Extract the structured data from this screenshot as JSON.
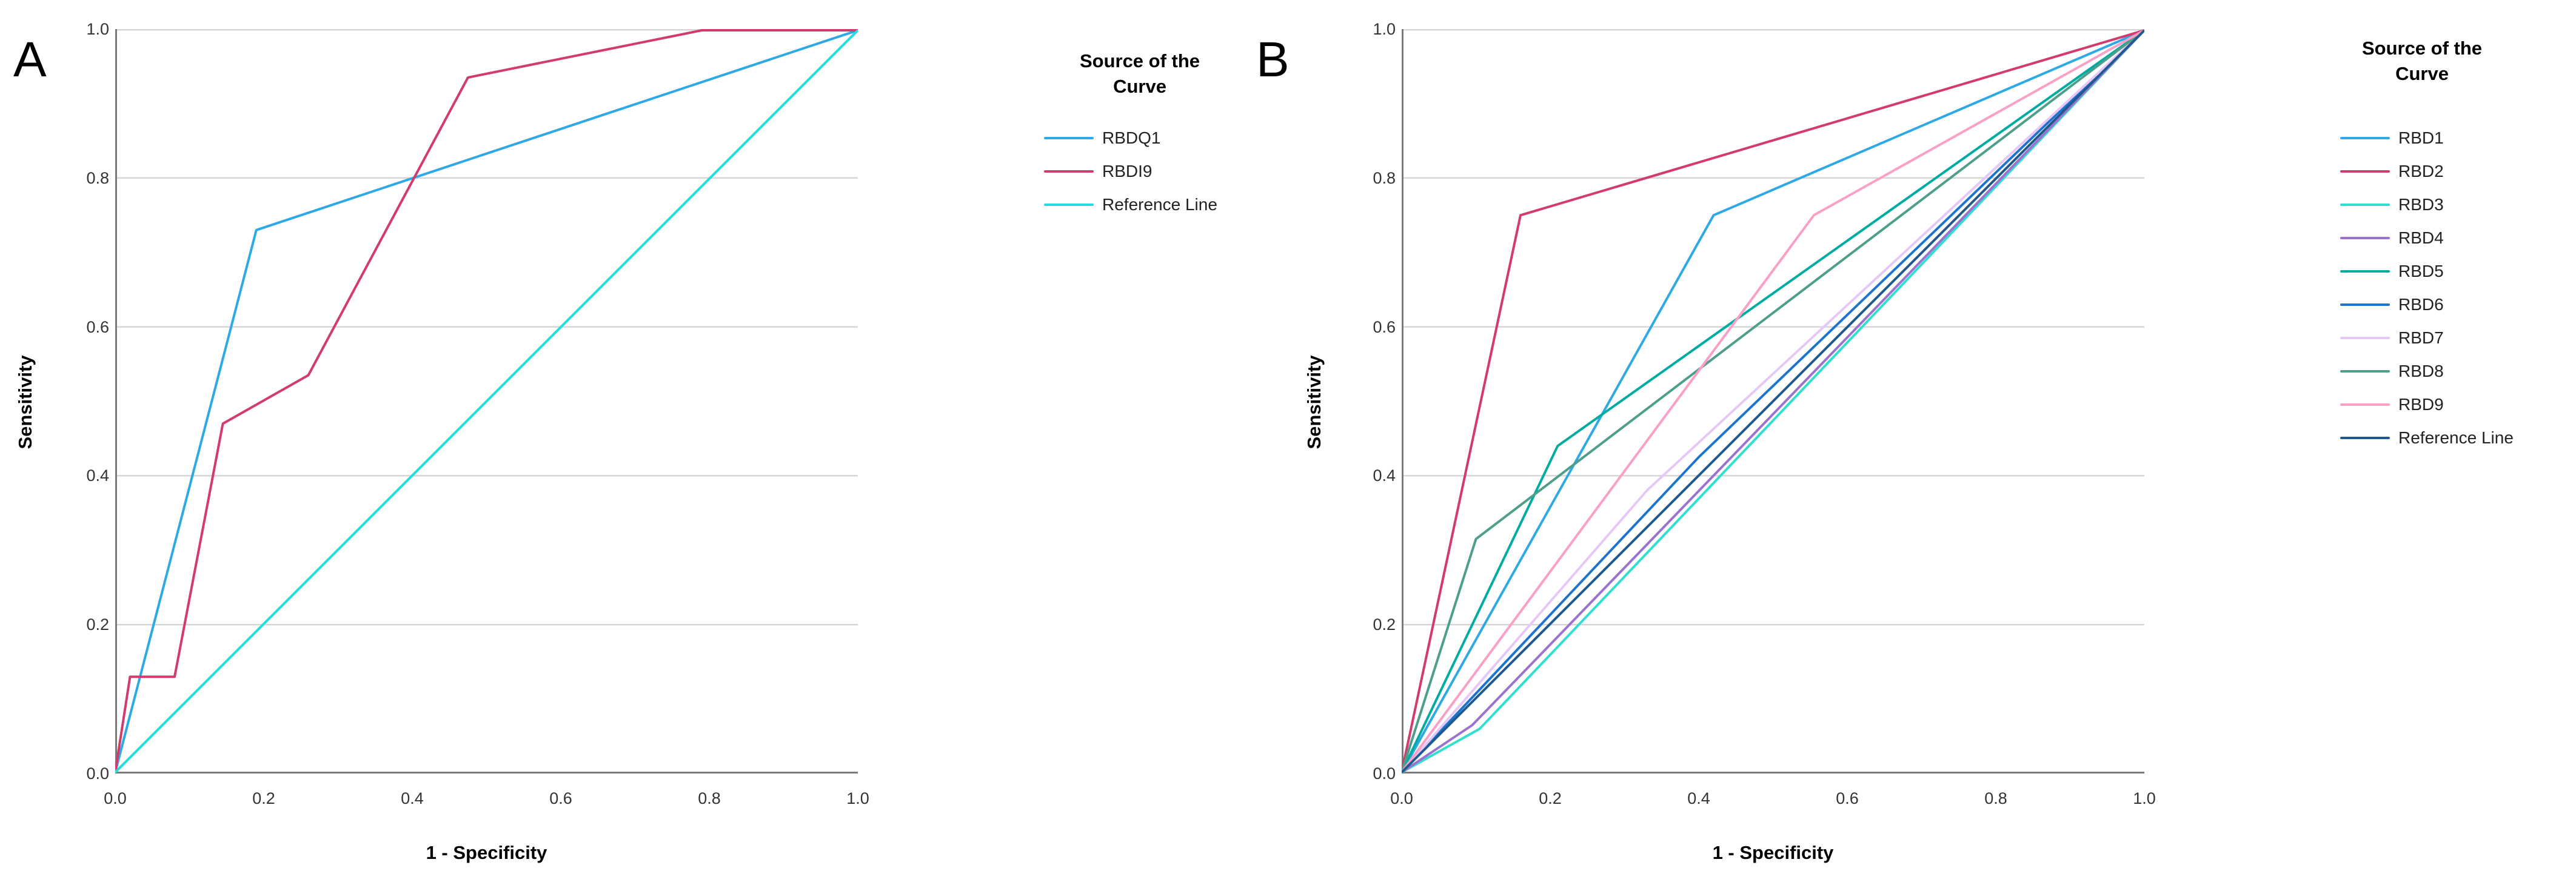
{
  "panels": [
    {
      "label": "A",
      "legend_title_line1": "Source of the",
      "legend_title_line2": "Curve"
    },
    {
      "label": "B",
      "legend_title_line1": "Source of the",
      "legend_title_line2": "Curve"
    }
  ],
  "chart_data": [
    {
      "type": "line",
      "subtype": "roc-curve",
      "panel": "A",
      "xlabel": "1 - Specificity",
      "ylabel": "Sensitivity",
      "xlim": [
        0.0,
        1.0
      ],
      "ylim": [
        0.0,
        1.0
      ],
      "x_tick_labels": [
        "0.0",
        "0.2",
        "0.4",
        "0.6",
        "0.8",
        "1.0"
      ],
      "y_tick_labels": [
        "0.0",
        "0.2",
        "0.4",
        "0.6",
        "0.8",
        "1.0"
      ],
      "grid": "horizontal-only",
      "gridline_color": "#d6d6d6",
      "axis_color": "#7a7a7a",
      "legend_position": "right",
      "legend_title": "Source of the Curve",
      "series": [
        {
          "name": "RBDQ1",
          "color": "#2da9e6",
          "points": [
            [
              0.0,
              0.0
            ],
            [
              0.19,
              0.73
            ],
            [
              1.0,
              1.0
            ]
          ]
        },
        {
          "name": "RBDI9",
          "color": "#d23b6c",
          "points": [
            [
              0.0,
              0.0
            ],
            [
              0.02,
              0.13
            ],
            [
              0.08,
              0.13
            ],
            [
              0.145,
              0.47
            ],
            [
              0.26,
              0.535
            ],
            [
              0.475,
              0.935
            ],
            [
              0.79,
              1.0
            ],
            [
              1.0,
              1.0
            ]
          ]
        },
        {
          "name": "Reference Line",
          "color": "#1fdedd",
          "points": [
            [
              0.0,
              0.0
            ],
            [
              1.0,
              1.0
            ]
          ]
        }
      ]
    },
    {
      "type": "line",
      "subtype": "roc-curve",
      "panel": "B",
      "xlabel": "1 - Specificity",
      "ylabel": "Sensitivity",
      "xlim": [
        0.0,
        1.0
      ],
      "ylim": [
        0.0,
        1.0
      ],
      "x_tick_labels": [
        "0.0",
        "0.2",
        "0.4",
        "0.6",
        "0.8",
        "1.0"
      ],
      "y_tick_labels": [
        "0.0",
        "0.2",
        "0.4",
        "0.6",
        "0.8",
        "1.0"
      ],
      "grid": "horizontal-only",
      "gridline_color": "#d6d6d6",
      "axis_color": "#7a7a7a",
      "legend_position": "right",
      "legend_title": "Source of the Curve",
      "series": [
        {
          "name": "RBD1",
          "color": "#2da9e6",
          "points": [
            [
              0.0,
              0.0
            ],
            [
              0.42,
              0.75
            ],
            [
              1.0,
              1.0
            ]
          ]
        },
        {
          "name": "RBD2",
          "color": "#d23b6c",
          "points": [
            [
              0.0,
              0.0
            ],
            [
              0.16,
              0.75
            ],
            [
              1.0,
              1.0
            ]
          ]
        },
        {
          "name": "RBD3",
          "color": "#2fdfd0",
          "points": [
            [
              0.0,
              0.0
            ],
            [
              0.105,
              0.06
            ],
            [
              1.0,
              1.0
            ]
          ]
        },
        {
          "name": "RBD4",
          "color": "#9b72cf",
          "points": [
            [
              0.0,
              0.0
            ],
            [
              0.095,
              0.065
            ],
            [
              1.0,
              1.0
            ]
          ]
        },
        {
          "name": "RBD5",
          "color": "#00aca1",
          "points": [
            [
              0.0,
              0.0
            ],
            [
              0.21,
              0.44
            ],
            [
              1.0,
              1.0
            ]
          ]
        },
        {
          "name": "RBD6",
          "color": "#1d74cf",
          "points": [
            [
              0.0,
              0.0
            ],
            [
              0.4,
              0.425
            ],
            [
              1.0,
              1.0
            ]
          ]
        },
        {
          "name": "RBD7",
          "color": "#e5c8f8",
          "points": [
            [
              0.0,
              0.0
            ],
            [
              0.33,
              0.38
            ],
            [
              1.0,
              1.0
            ]
          ]
        },
        {
          "name": "RBD8",
          "color": "#4d9e8b",
          "points": [
            [
              0.0,
              0.0
            ],
            [
              0.1,
              0.315
            ],
            [
              1.0,
              1.0
            ]
          ]
        },
        {
          "name": "RBD9",
          "color": "#fb9fc7",
          "points": [
            [
              0.0,
              0.0
            ],
            [
              0.555,
              0.75
            ],
            [
              1.0,
              1.0
            ]
          ]
        },
        {
          "name": "Reference Line",
          "color": "#20598f",
          "points": [
            [
              0.0,
              0.0
            ],
            [
              1.0,
              1.0
            ]
          ]
        }
      ]
    }
  ]
}
